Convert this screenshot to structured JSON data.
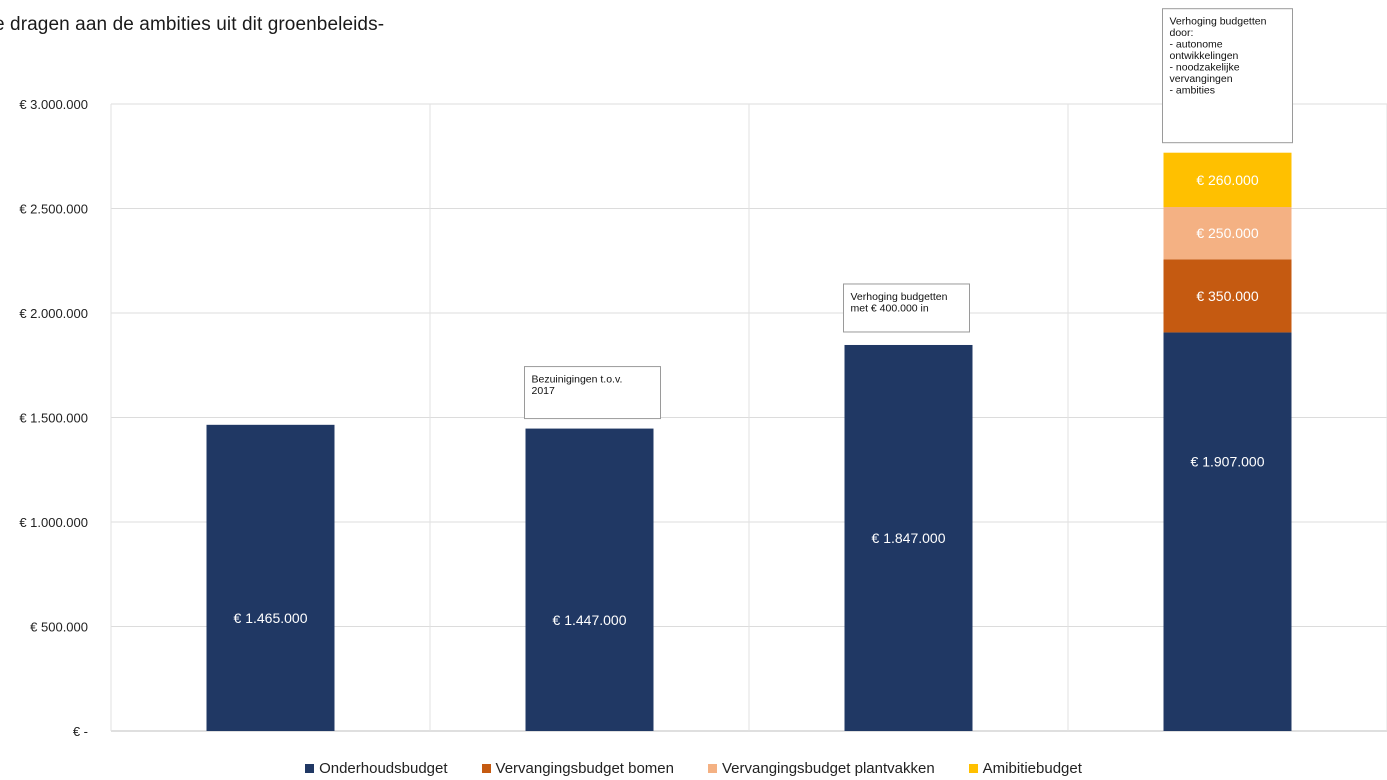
{
  "document": {
    "line1": "e dragen aan de ambities uit dit groenbeleids-",
    "line2": "."
  },
  "chart_data": {
    "type": "bar",
    "stacked": true,
    "title": "",
    "xlabel": "",
    "ylabel": "",
    "categories": [
      "",
      "",
      "",
      ""
    ],
    "ylim": [
      0,
      3000000
    ],
    "yticks": [
      0,
      500000,
      1000000,
      1500000,
      2000000,
      2500000,
      3000000
    ],
    "ytick_labels": [
      "€ -",
      "€ 500.000",
      "€ 1.000.000",
      "€ 1.500.000",
      "€ 2.000.000",
      "€ 2.500.000",
      "€ 3.000.000"
    ],
    "grid": true,
    "legend_position": "bottom",
    "series": [
      {
        "name": "Onderhoudsbudget",
        "color": "#203864",
        "values": [
          1465000,
          1447000,
          1847000,
          1907000
        ],
        "labels": [
          "€ 1.465.000",
          "€ 1.447.000",
          "€ 1.847.000",
          "€ 1.907.000"
        ]
      },
      {
        "name": "Vervangingsbudget bomen",
        "color": "#C55A11",
        "values": [
          0,
          0,
          0,
          350000
        ],
        "labels": [
          "",
          "",
          "",
          "€ 350.000"
        ]
      },
      {
        "name": "Vervangingsbudget plantvakken",
        "color": "#F4B183",
        "values": [
          0,
          0,
          0,
          250000
        ],
        "labels": [
          "",
          "",
          "",
          "€ 250.000"
        ]
      },
      {
        "name": "Amibitiebudget",
        "color": "#FFC000",
        "values": [
          0,
          0,
          0,
          260000
        ],
        "labels": [
          "",
          "",
          "",
          "€ 260.000"
        ]
      }
    ],
    "annotations": [
      {
        "category": 1,
        "lines": [
          "Bezuinigingen t.o.v.",
          "2017"
        ]
      },
      {
        "category": 2,
        "lines": [
          "Verhoging budgetten",
          "met € 400.000 in"
        ]
      },
      {
        "category": 3,
        "lines": [
          "Verhoging budgetten",
          "door:",
          "- autonome",
          "ontwikkelingen",
          "- noodzakelijke",
          "vervangingen",
          "- ambities"
        ]
      }
    ]
  }
}
